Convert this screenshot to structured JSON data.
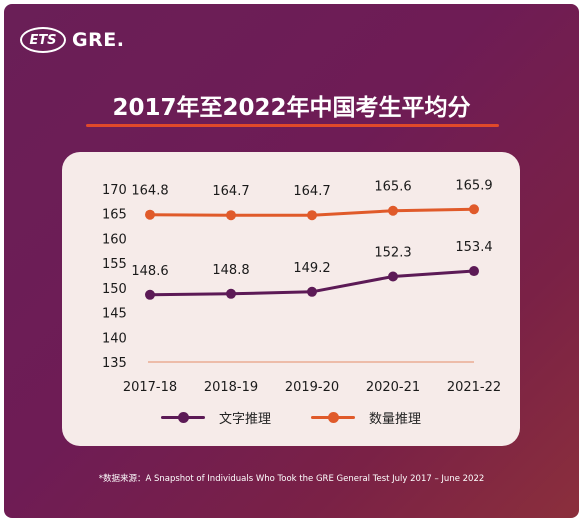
{
  "logo": {
    "ets": "ETS",
    "gre": "GRE."
  },
  "title": "2017年至2022年中国考生平均分",
  "footnote": "*数据来源：A Snapshot of Individuals Who Took the GRE General Test July 2017 – June 2022",
  "colors": {
    "verbal": "#5c1a56",
    "quant": "#e05a2a",
    "axis_line": "#e8a083"
  },
  "chart_data": {
    "type": "line",
    "categories": [
      "2017-18",
      "2018-19",
      "2019-20",
      "2020-21",
      "2021-22"
    ],
    "y_ticks": [
      "170",
      "165",
      "160",
      "155",
      "150",
      "145",
      "140",
      "135"
    ],
    "ylim": [
      135,
      170
    ],
    "grid": false,
    "legend_position": "bottom",
    "series": [
      {
        "name": "文字推理",
        "values": [
          148.6,
          148.8,
          149.2,
          152.3,
          153.4
        ],
        "labels": [
          "148.6",
          "148.8",
          "149.2",
          "152.3",
          "153.4"
        ]
      },
      {
        "name": "数量推理",
        "values": [
          164.8,
          164.7,
          164.7,
          165.6,
          165.9
        ],
        "labels": [
          "164.8",
          "164.7",
          "164.7",
          "165.6",
          "165.9"
        ]
      }
    ]
  }
}
